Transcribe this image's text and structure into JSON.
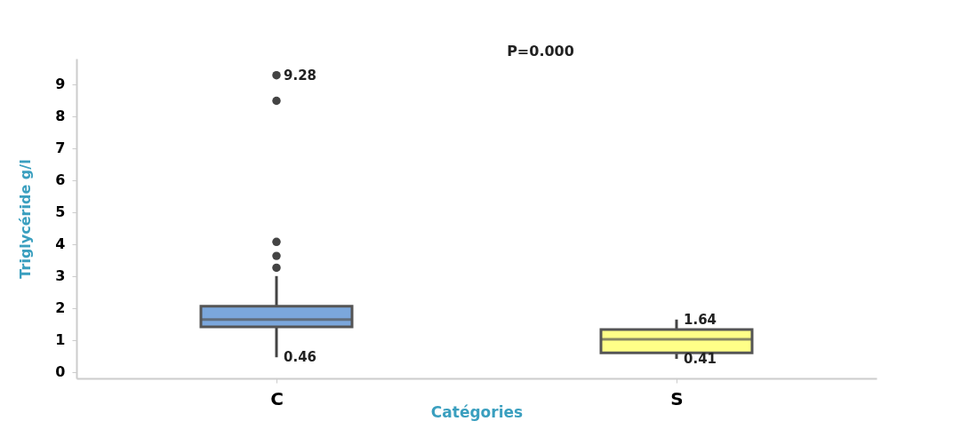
{
  "chart_data": {
    "type": "box",
    "xlabel": "Catégories",
    "ylabel": "Triglycéride g/l",
    "categories": [
      "C",
      "S"
    ],
    "boxes": [
      {
        "low": 0.46,
        "q1": 1.41,
        "median": 1.64,
        "q3": 2.06,
        "high": 3.0,
        "outliers": [
          3.26,
          3.63,
          4.07,
          8.48,
          9.28
        ]
      },
      {
        "low": 0.41,
        "q1": 0.6,
        "median": 1.02,
        "q3": 1.33,
        "high": 1.64
      }
    ],
    "colors": [
      "#7ba7dc",
      "#ffff88"
    ],
    "ylim": [
      -0.2,
      9.8
    ],
    "yticks": [
      0,
      1,
      2,
      3,
      4,
      5,
      6,
      7,
      8,
      9
    ],
    "grid": false,
    "annotations": [
      "9.28",
      {
        "text": "0.46",
        "x": "C",
        "y": 0.46
      },
      {
        "text": "1.64",
        "x": "S",
        "y": 1.64
      },
      {
        "text": "0.41",
        "x": "S",
        "y": 0.41
      },
      "P=0.000"
    ]
  }
}
